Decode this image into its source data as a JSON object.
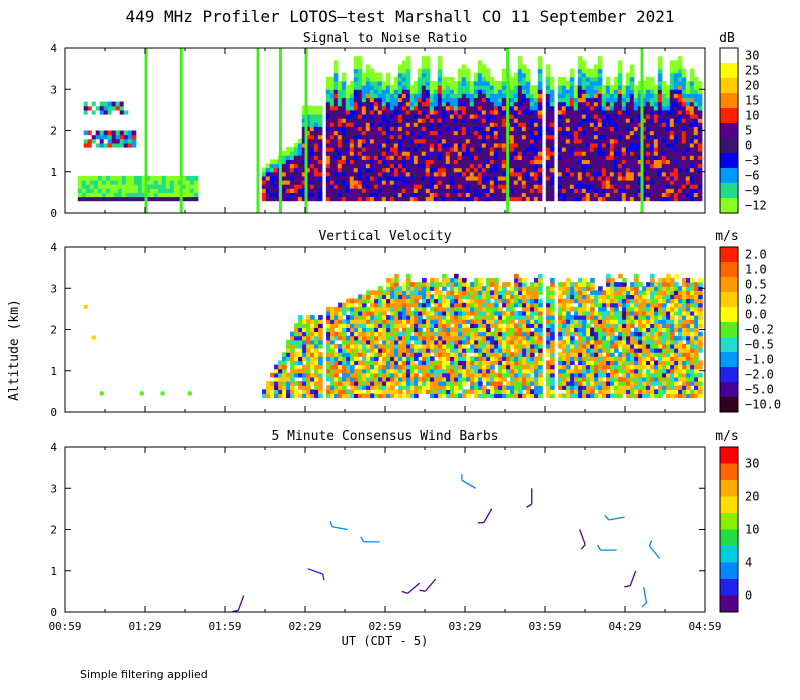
{
  "title": "449 MHz Profiler LOTOS—test Marshall CO 11 September 2021",
  "ylabel": "Altitude (km)",
  "xlabel": "UT  (CDT - 5)",
  "footnote": "Simple filtering applied",
  "x_ticks": [
    "00:59",
    "01:29",
    "01:59",
    "02:29",
    "02:59",
    "03:29",
    "03:59",
    "04:29",
    "04:59"
  ],
  "y_ticks": [
    "0",
    "1",
    "2",
    "3",
    "4"
  ],
  "chart_data": [
    {
      "type": "heatmap",
      "title": "Signal to Noise Ratio",
      "colorbar_unit": "dB",
      "colorbar_labels": [
        "30",
        "25",
        "20",
        "15",
        "10",
        "5",
        "0",
        "−3",
        "−6",
        "−9",
        "−12"
      ],
      "colorbar_colors": [
        "#ffffff",
        "#ffff00",
        "#ffcc00",
        "#ff8800",
        "#ff2200",
        "#550088",
        "#3a1470",
        "#0000ee",
        "#0099ff",
        "#22dd88",
        "#88ff22"
      ],
      "xlim": [
        0.983,
        4.983
      ],
      "ylim": [
        0,
        4
      ],
      "vertical_lines_ut": [
        1.48,
        1.7,
        2.18,
        2.32,
        2.48,
        3.74,
        4.58
      ],
      "gaps_ut": [
        [
          1.79,
          2.19
        ],
        [
          2.58,
          2.6
        ],
        [
          3.95,
          3.98
        ],
        [
          4.03,
          4.06
        ]
      ]
    },
    {
      "type": "heatmap",
      "title": "Vertical Velocity",
      "colorbar_unit": "m/s",
      "colorbar_labels": [
        "2.0",
        "1.0",
        "0.5",
        "0.2",
        "0.0",
        "−0.2",
        "−0.5",
        "−1.0",
        "−2.0",
        "−5.0",
        "−10.0"
      ],
      "colorbar_colors": [
        "#ff2200",
        "#ff6600",
        "#ff9900",
        "#ffcc00",
        "#ffff00",
        "#55ee22",
        "#22ddcc",
        "#0099ff",
        "#2222ee",
        "#440099",
        "#330022"
      ],
      "xlim": [
        0.983,
        4.983
      ],
      "ylim": [
        0,
        4
      ]
    },
    {
      "type": "scatter",
      "title": "5 Minute Consensus Wind Barbs",
      "colorbar_unit": "m/s",
      "colorbar_labels": [
        "30",
        "20",
        "10",
        "4",
        "0"
      ],
      "colorbar_colors": [
        "#ff0000",
        "#ff6600",
        "#ffaa00",
        "#ffdd00",
        "#88ee00",
        "#22dd44",
        "#00ccdd",
        "#0088ff",
        "#2222ee",
        "#550088"
      ],
      "xlim": [
        0.983,
        4.983
      ],
      "ylim": [
        0,
        4
      ],
      "barbs": [
        {
          "t": 2.1,
          "alt": 0.4,
          "speed": 2,
          "dir": 200
        },
        {
          "t": 2.5,
          "alt": 1.05,
          "speed": 4,
          "dir": 110
        },
        {
          "t": 2.75,
          "alt": 2.0,
          "speed": 8,
          "dir": 280
        },
        {
          "t": 2.95,
          "alt": 1.7,
          "speed": 8,
          "dir": 270
        },
        {
          "t": 3.2,
          "alt": 0.7,
          "speed": 2,
          "dir": 230
        },
        {
          "t": 3.3,
          "alt": 0.8,
          "speed": 2,
          "dir": 220
        },
        {
          "t": 3.55,
          "alt": 3.0,
          "speed": 9,
          "dir": 300
        },
        {
          "t": 3.65,
          "alt": 2.5,
          "speed": 2,
          "dir": 210
        },
        {
          "t": 3.9,
          "alt": 3.0,
          "speed": 2,
          "dir": 180
        },
        {
          "t": 4.2,
          "alt": 2.0,
          "speed": 2,
          "dir": 160
        },
        {
          "t": 4.43,
          "alt": 1.5,
          "speed": 8,
          "dir": 270
        },
        {
          "t": 4.48,
          "alt": 2.3,
          "speed": 10,
          "dir": 260
        },
        {
          "t": 4.55,
          "alt": 1.0,
          "speed": 2,
          "dir": 200
        },
        {
          "t": 4.6,
          "alt": 0.6,
          "speed": 7,
          "dir": 170
        },
        {
          "t": 4.7,
          "alt": 1.3,
          "speed": 8,
          "dir": 320
        }
      ]
    }
  ]
}
